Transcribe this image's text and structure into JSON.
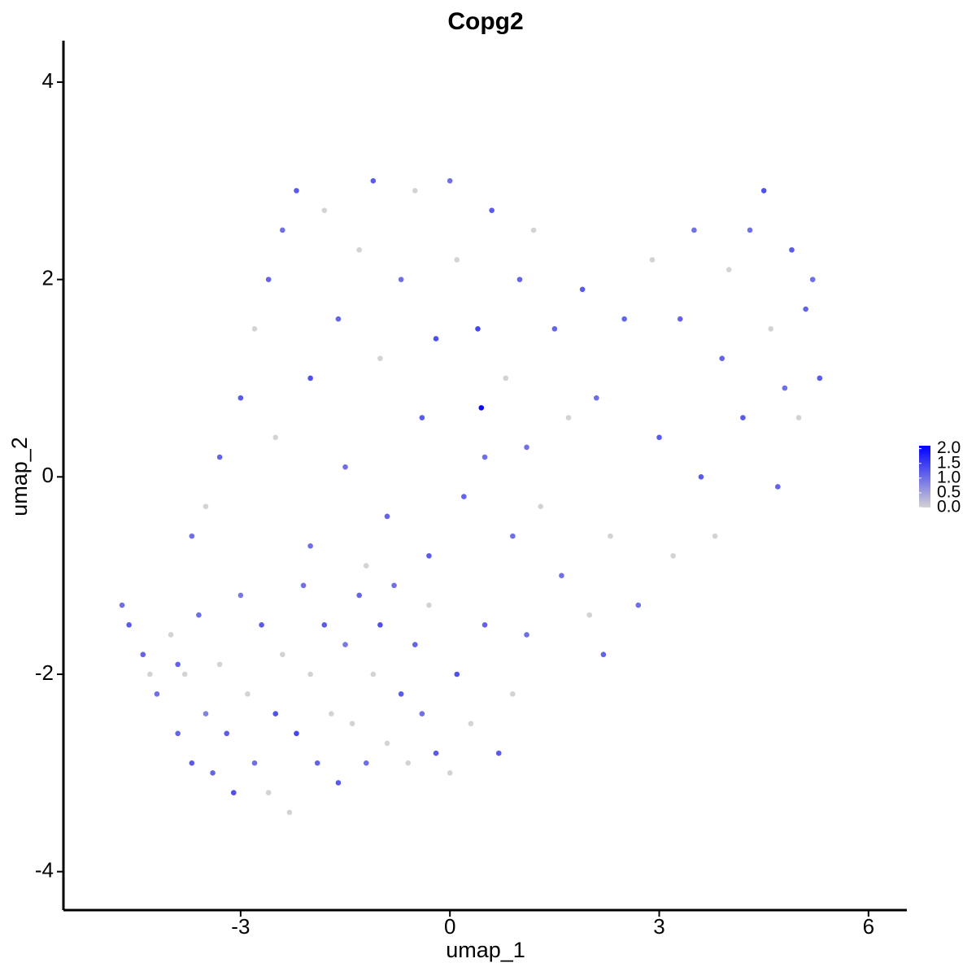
{
  "chart_data": {
    "type": "scatter",
    "title": "Copg2",
    "x_label": "umap_1",
    "y_label": "umap_2",
    "xlim": [
      -5.54,
      6.55
    ],
    "ylim": [
      -4.39,
      4.42
    ],
    "xticks": [
      -3,
      0,
      3,
      6
    ],
    "yticks": [
      -4,
      -2,
      0,
      2,
      4
    ],
    "x": [
      -4.7,
      -4.6,
      -4.4,
      -4.2,
      -4.0,
      -3.9,
      -3.8,
      -3.7,
      -3.6,
      -3.5,
      -3.4,
      -3.3,
      -3.2,
      -3.1,
      -3.0,
      -2.9,
      -2.8,
      -2.7,
      -2.6,
      -2.5,
      -2.4,
      -2.3,
      -2.2,
      -2.1,
      -2.0,
      -1.9,
      -1.8,
      -1.7,
      -1.6,
      -1.5,
      -1.4,
      -1.3,
      -1.2,
      -1.1,
      -1.0,
      -0.9,
      -0.8,
      -0.7,
      -0.6,
      -0.5,
      -0.4,
      -0.3,
      -0.2,
      0.0,
      0.1,
      0.3,
      0.5,
      0.7,
      0.9,
      1.1,
      -3.5,
      -3.7,
      -3.3,
      -3.0,
      -2.8,
      -2.6,
      -2.4,
      -2.2,
      -2.5,
      -2.0,
      -1.8,
      -1.6,
      -1.5,
      -1.3,
      -1.1,
      -1.0,
      -0.9,
      -0.7,
      -0.5,
      -0.4,
      -0.2,
      0.0,
      0.1,
      0.2,
      0.4,
      0.45,
      0.6,
      0.8,
      0.9,
      1.0,
      1.2,
      1.1,
      -2.0,
      -1.2,
      -0.3,
      1.5,
      1.7,
      1.9,
      2.1,
      2.3,
      2.5,
      2.7,
      2.9,
      3.0,
      3.2,
      3.3,
      3.5,
      3.6,
      3.8,
      3.9,
      4.0,
      4.2,
      4.3,
      4.5,
      4.6,
      4.7,
      4.8,
      4.9,
      5.0,
      5.1,
      5.2,
      5.3,
      2.2,
      1.6,
      2.0,
      0.5,
      1.3,
      -3.9,
      -4.3
    ],
    "y": [
      -1.3,
      -1.5,
      -1.8,
      -2.2,
      -1.6,
      -2.6,
      -2.0,
      -2.9,
      -1.4,
      -2.4,
      -3.0,
      -1.9,
      -2.6,
      -3.2,
      -1.2,
      -2.2,
      -2.9,
      -1.5,
      -3.2,
      -2.4,
      -1.8,
      -3.4,
      -2.6,
      -1.1,
      -2.0,
      -2.9,
      -1.5,
      -2.4,
      -3.1,
      -1.7,
      -2.5,
      -1.2,
      -2.9,
      -2.0,
      -1.5,
      -2.7,
      -1.1,
      -2.2,
      -2.9,
      -1.7,
      -2.4,
      -1.3,
      -2.8,
      -3.0,
      -2.0,
      -2.5,
      -1.5,
      -2.8,
      -2.2,
      -1.6,
      -0.3,
      -0.6,
      0.2,
      0.8,
      1.5,
      2.0,
      2.5,
      2.9,
      0.4,
      1.0,
      2.7,
      1.6,
      0.1,
      2.3,
      3.0,
      1.2,
      -0.4,
      2.0,
      2.9,
      0.6,
      1.4,
      3.0,
      2.2,
      -0.2,
      1.5,
      0.7,
      2.7,
      1.0,
      -0.6,
      2.0,
      2.5,
      0.3,
      -0.7,
      -0.9,
      -0.8,
      1.5,
      0.6,
      1.9,
      0.8,
      -0.6,
      1.6,
      -1.3,
      2.2,
      0.4,
      -0.8,
      1.6,
      2.5,
      0.0,
      -0.6,
      1.2,
      2.1,
      0.6,
      2.5,
      2.9,
      1.5,
      -0.1,
      0.9,
      2.3,
      0.6,
      1.7,
      2.0,
      1.0,
      -1.8,
      -1.0,
      -1.4,
      0.2,
      -0.3,
      -1.9,
      -2.0
    ],
    "values": [
      1.0,
      1.2,
      1.1,
      1.0,
      0,
      1.1,
      0,
      1.2,
      1.0,
      0.8,
      1.1,
      0,
      1.2,
      1.3,
      0.9,
      0,
      1.0,
      1.2,
      0,
      1.3,
      0,
      0,
      1.4,
      1.0,
      0,
      1.1,
      1.2,
      0,
      1.2,
      0.9,
      0,
      1.1,
      1.0,
      0,
      1.3,
      0,
      1.0,
      1.2,
      0,
      1.1,
      1.0,
      0,
      1.2,
      0,
      1.3,
      0,
      1.1,
      1.2,
      0,
      1.0,
      0,
      1.0,
      1.1,
      1.2,
      0,
      1.1,
      1.0,
      1.2,
      0,
      1.3,
      0,
      1.1,
      1.0,
      0,
      1.2,
      0,
      1.1,
      1.0,
      0,
      1.2,
      1.3,
      1.0,
      0,
      1.1,
      1.4,
      2.0,
      1.2,
      0,
      1.0,
      1.1,
      0,
      1.0,
      1.0,
      0,
      1.2,
      1.1,
      0,
      1.2,
      1.0,
      0,
      1.1,
      1.0,
      0,
      1.2,
      0,
      1.1,
      1.0,
      1.2,
      0,
      1.1,
      0,
      1.2,
      1.0,
      1.3,
      0,
      1.1,
      1.0,
      1.2,
      0,
      1.1,
      1.0,
      1.2,
      1.1,
      1.0,
      0,
      1.0,
      0,
      1.1,
      0
    ],
    "colorbar": {
      "lim": [
        0,
        2.1
      ],
      "low": "#d3d3d3",
      "high": "#0000ff",
      "ticks": [
        {
          "value": 0,
          "label": "0.0"
        },
        0.5,
        {
          "value": 1,
          "label": "1.0"
        },
        1.5,
        {
          "value": 2,
          "label": "2.0"
        }
      ]
    }
  }
}
